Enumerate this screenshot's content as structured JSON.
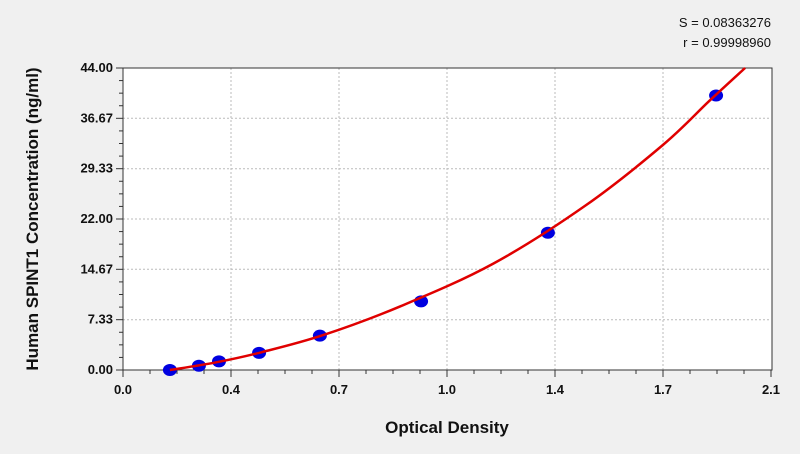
{
  "chart_data": {
    "type": "scatter",
    "xlabel": "Optical Density",
    "ylabel": "Human SPINT1 Concentration (ng/ml)",
    "xlim": [
      0,
      2.1
    ],
    "ylim": [
      0,
      44
    ],
    "x_ticks": [
      0,
      0.35,
      0.7,
      1.05,
      1.4,
      1.75,
      2.1
    ],
    "x_tick_labels": [
      "0.0",
      "0.4",
      "0.7",
      "1.0",
      "1.4",
      "1.7",
      "2.1"
    ],
    "y_ticks": [
      0,
      7.33,
      14.67,
      22,
      29.33,
      36.67,
      44
    ],
    "y_tick_labels": [
      "0.00",
      "7.33",
      "14.67",
      "22.00",
      "29.33",
      "36.67",
      "44.00"
    ],
    "grid": true,
    "points": {
      "x": [
        0.152,
        0.246,
        0.311,
        0.441,
        0.638,
        0.966,
        1.377,
        1.922
      ],
      "y": [
        0,
        0.625,
        1.25,
        2.5,
        5,
        10,
        20,
        40
      ],
      "color": "#0000e0"
    },
    "fit_curve": {
      "x": [
        0.152,
        0.3,
        0.45,
        0.65,
        0.9,
        1.2,
        1.5,
        1.75,
        1.9,
        2.016
      ],
      "y": [
        0,
        1.1,
        2.6,
        5.1,
        9.3,
        15.5,
        24.0,
        32.8,
        39.2,
        44
      ],
      "color": "#e00000"
    },
    "stats": {
      "s": "S = 0.08363276",
      "r": "r = 0.99998960"
    }
  }
}
